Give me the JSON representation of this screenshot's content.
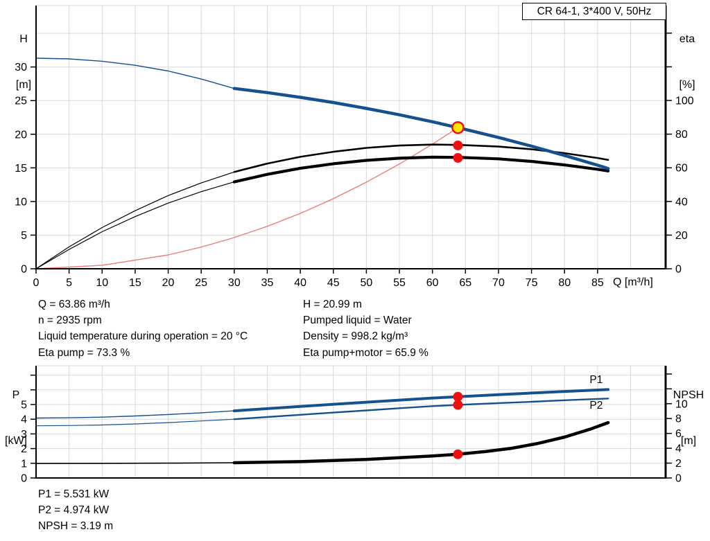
{
  "colors": {
    "pump_blue": "#15518e",
    "curve_black": "#000000",
    "system_red": "#ee7d7d",
    "dot_red": "#ee1111",
    "duty_yellow": "#ffe600",
    "grid": "#d8d8d8",
    "axis": "#000000"
  },
  "operating_data": {
    "left": [
      "Q = 63.86 m³/h",
      "n = 2935 rpm",
      "Liquid temperature during operation = 20 °C",
      "Eta pump = 73.3 %"
    ],
    "right": [
      "H = 20.99 m",
      "Pumped liquid = Water",
      "Density = 998.2 kg/m³",
      "Eta pump+motor = 65.9 %"
    ]
  },
  "power_data": [
    "P1 = 5.531 kW",
    "P2 = 4.974 kW",
    "NPSH = 3.19 m"
  ],
  "chart_data": [
    {
      "type": "line",
      "name": "qh-eta-chart",
      "title": "CR 64-1, 3*400 V, 50Hz",
      "x_axis": {
        "label": "Q [m³/h]",
        "min": 0,
        "max": 95.3,
        "tick_step": 5,
        "ticks": [
          0,
          5,
          10,
          15,
          20,
          25,
          30,
          35,
          40,
          45,
          50,
          55,
          60,
          65,
          70,
          75,
          80,
          85
        ]
      },
      "y_left": {
        "label_lines": [
          "H",
          "[m]"
        ],
        "min": 0,
        "max": 39.13,
        "ticks": [
          0,
          5,
          10,
          15,
          20,
          25,
          30
        ],
        "minor_ticks": []
      },
      "y_right": {
        "label_lines": [
          "eta",
          "[%]"
        ],
        "min": 0,
        "max": 156.4,
        "ticks": [
          0,
          20,
          40,
          60,
          80,
          100
        ],
        "minor_ticks": [
          120,
          140
        ]
      },
      "series": [
        {
          "name": "system-curve",
          "axis": "left",
          "color": "#ee7d7d",
          "segments": [
            {
              "width": 1.4,
              "points": [
                [
                  0,
                  0
                ],
                [
                  10,
                  0.51
                ],
                [
                  20,
                  2.06
                ],
                [
                  25,
                  3.22
                ],
                [
                  30,
                  4.63
                ],
                [
                  35,
                  6.31
                ],
                [
                  40,
                  8.23
                ],
                [
                  45,
                  10.42
                ],
                [
                  50,
                  12.87
                ],
                [
                  55,
                  15.57
                ],
                [
                  60,
                  18.53
                ],
                [
                  63.86,
                  20.99
                ]
              ]
            }
          ]
        },
        {
          "name": "eta-pump-curve",
          "axis": "right",
          "color": "#000000",
          "segments": [
            {
              "width": 1.2,
              "points": [
                [
                  0,
                  0
                ],
                [
                  5,
                  13
                ],
                [
                  10,
                  24.5
                ],
                [
                  15,
                  34.5
                ],
                [
                  20,
                  43.5
                ],
                [
                  25,
                  51
                ],
                [
                  30,
                  57.5
                ]
              ]
            },
            {
              "width": 2.6,
              "points": [
                [
                  30,
                  57.5
                ],
                [
                  35,
                  62.5
                ],
                [
                  40,
                  66.5
                ],
                [
                  45,
                  69.5
                ],
                [
                  50,
                  71.8
                ],
                [
                  55,
                  73.2
                ],
                [
                  60,
                  73.8
                ],
                [
                  64,
                  73.6
                ],
                [
                  70,
                  72.6
                ],
                [
                  75,
                  71
                ],
                [
                  80,
                  68.7
                ],
                [
                  85,
                  65.8
                ],
                [
                  86.6,
                  64.7
                ]
              ]
            }
          ]
        },
        {
          "name": "eta-pump-motor-curve",
          "axis": "right",
          "color": "#000000",
          "segments": [
            {
              "width": 1.2,
              "points": [
                [
                  0,
                  0
                ],
                [
                  5,
                  11.5
                ],
                [
                  10,
                  22
                ],
                [
                  15,
                  31
                ],
                [
                  20,
                  39
                ],
                [
                  25,
                  45.8
                ],
                [
                  30,
                  51.6
                ]
              ]
            },
            {
              "width": 4.2,
              "points": [
                [
                  30,
                  51.6
                ],
                [
                  35,
                  56.1
                ],
                [
                  40,
                  59.7
                ],
                [
                  45,
                  62.4
                ],
                [
                  50,
                  64.4
                ],
                [
                  55,
                  65.7
                ],
                [
                  60,
                  66.3
                ],
                [
                  64,
                  66.2
                ],
                [
                  70,
                  65.3
                ],
                [
                  75,
                  63.8
                ],
                [
                  80,
                  61.7
                ],
                [
                  85,
                  59.1
                ],
                [
                  86.6,
                  58.1
                ]
              ]
            }
          ]
        },
        {
          "name": "pump-head-curve",
          "axis": "left",
          "color": "#15518e",
          "segments": [
            {
              "width": 1.4,
              "points": [
                [
                  0,
                  31.3
                ],
                [
                  5,
                  31.2
                ],
                [
                  10,
                  30.85
                ],
                [
                  15,
                  30.25
                ],
                [
                  20,
                  29.4
                ],
                [
                  25,
                  28.2
                ],
                [
                  30,
                  26.8
                ]
              ]
            },
            {
              "width": 4.5,
              "points": [
                [
                  30,
                  26.8
                ],
                [
                  35,
                  26.19
                ],
                [
                  40,
                  25.49
                ],
                [
                  45,
                  24.71
                ],
                [
                  50,
                  23.84
                ],
                [
                  55,
                  22.89
                ],
                [
                  60,
                  21.85
                ],
                [
                  63.86,
                  20.99
                ],
                [
                  70,
                  19.52
                ],
                [
                  75,
                  18.23
                ],
                [
                  80,
                  16.85
                ],
                [
                  85,
                  15.39
                ],
                [
                  86.6,
                  14.9
                ]
              ]
            }
          ]
        }
      ],
      "markers": [
        {
          "name": "duty-point",
          "kind": "duty",
          "axis": "left",
          "x": 63.86,
          "y": 20.99
        },
        {
          "name": "eta-pump-point",
          "kind": "dot",
          "axis": "right",
          "x": 63.86,
          "y": 73.3
        },
        {
          "name": "eta-pump-motor-point",
          "kind": "dot",
          "axis": "right",
          "x": 63.86,
          "y": 65.9
        }
      ],
      "annotations": []
    },
    {
      "type": "line",
      "name": "power-npsh-chart",
      "title": "",
      "x_axis": {
        "label": "",
        "min": 0,
        "max": 95.3,
        "tick_step": 5,
        "ticks": []
      },
      "y_left": {
        "label_lines": [
          "P",
          "[kW]"
        ],
        "min": 0,
        "max": 7.64,
        "ticks": [
          0,
          1,
          2,
          3,
          4,
          5
        ],
        "minor_ticks": [
          6,
          7
        ]
      },
      "y_right": {
        "label_lines": [
          "NPSH",
          "[m]"
        ],
        "min": 0,
        "max": 15.11,
        "ticks": [
          0,
          2,
          4,
          6,
          8,
          10
        ],
        "minor_ticks": [
          12,
          14
        ]
      },
      "series": [
        {
          "name": "npsh-curve",
          "axis": "right",
          "color": "#000000",
          "segments": [
            {
              "width": 1.6,
              "points": [
                [
                  0,
                  1.95
                ],
                [
                  10,
                  1.97
                ],
                [
                  20,
                  2.0
                ],
                [
                  30,
                  2.05
                ]
              ]
            },
            {
              "width": 4.5,
              "points": [
                [
                  30,
                  2.05
                ],
                [
                  40,
                  2.2
                ],
                [
                  50,
                  2.5
                ],
                [
                  55,
                  2.72
                ],
                [
                  60,
                  2.97
                ],
                [
                  63.86,
                  3.19
                ],
                [
                  68,
                  3.55
                ],
                [
                  72,
                  4.0
                ],
                [
                  76,
                  4.65
                ],
                [
                  80,
                  5.5
                ],
                [
                  84,
                  6.6
                ],
                [
                  86.6,
                  7.45
                ]
              ]
            }
          ]
        },
        {
          "name": "p2-curve",
          "axis": "left",
          "color": "#15518e",
          "segments": [
            {
              "width": 1.2,
              "points": [
                [
                  0,
                  3.55
                ],
                [
                  5,
                  3.57
                ],
                [
                  10,
                  3.61
                ],
                [
                  15,
                  3.68
                ],
                [
                  20,
                  3.77
                ],
                [
                  25,
                  3.88
                ],
                [
                  30,
                  4.0
                ]
              ]
            },
            {
              "width": 2.4,
              "points": [
                [
                  30,
                  4.0
                ],
                [
                  35,
                  4.15
                ],
                [
                  40,
                  4.3
                ],
                [
                  45,
                  4.45
                ],
                [
                  50,
                  4.6
                ],
                [
                  55,
                  4.75
                ],
                [
                  60,
                  4.89
                ],
                [
                  63.86,
                  4.974
                ],
                [
                  70,
                  5.1
                ],
                [
                  75,
                  5.19
                ],
                [
                  80,
                  5.29
                ],
                [
                  85,
                  5.38
                ],
                [
                  86.6,
                  5.41
                ]
              ]
            }
          ]
        },
        {
          "name": "p1-curve",
          "axis": "left",
          "color": "#15518e",
          "segments": [
            {
              "width": 1.4,
              "points": [
                [
                  0,
                  4.08
                ],
                [
                  5,
                  4.1
                ],
                [
                  10,
                  4.14
                ],
                [
                  15,
                  4.22
                ],
                [
                  20,
                  4.32
                ],
                [
                  25,
                  4.44
                ],
                [
                  30,
                  4.57
                ]
              ]
            },
            {
              "width": 4.0,
              "points": [
                [
                  30,
                  4.57
                ],
                [
                  35,
                  4.72
                ],
                [
                  40,
                  4.87
                ],
                [
                  45,
                  5.02
                ],
                [
                  50,
                  5.16
                ],
                [
                  55,
                  5.3
                ],
                [
                  60,
                  5.44
                ],
                [
                  63.86,
                  5.531
                ],
                [
                  70,
                  5.67
                ],
                [
                  75,
                  5.78
                ],
                [
                  80,
                  5.89
                ],
                [
                  85,
                  5.99
                ],
                [
                  86.6,
                  6.02
                ]
              ]
            }
          ]
        }
      ],
      "markers": [
        {
          "name": "p1-point",
          "kind": "dot",
          "axis": "left",
          "x": 63.86,
          "y": 5.531
        },
        {
          "name": "p2-point",
          "kind": "dot",
          "axis": "left",
          "x": 63.86,
          "y": 4.974
        },
        {
          "name": "npsh-point",
          "kind": "dot",
          "axis": "right",
          "x": 63.86,
          "y": 3.19
        }
      ],
      "annotations": [
        {
          "name": "p1-label",
          "text": "P1",
          "axis": "left",
          "x": 83.8,
          "y": 6.45,
          "color": "#15518e"
        },
        {
          "name": "p2-label",
          "text": "P2",
          "axis": "left",
          "x": 83.8,
          "y": 4.72,
          "color": "#15518e"
        }
      ]
    }
  ]
}
